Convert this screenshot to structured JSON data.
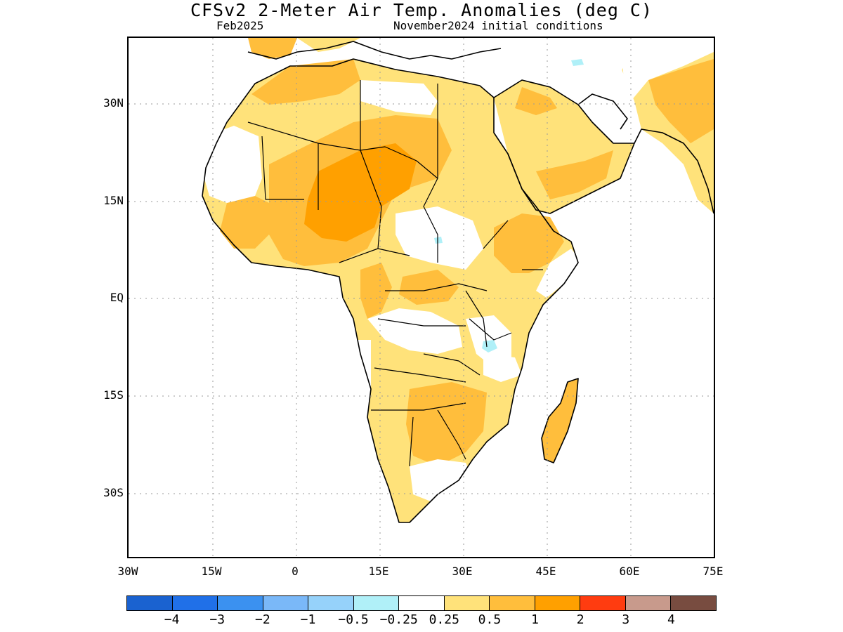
{
  "header": {
    "title": "CFSv2 2-Meter Air Temp. Anomalies (deg C)",
    "valid_month": "Feb2025",
    "initial_conditions": "November2024 initial conditions"
  },
  "map": {
    "latitude_labels": [
      "30N",
      "15N",
      "EQ",
      "15S",
      "30S"
    ],
    "longitude_labels": [
      "30W",
      "15W",
      "0",
      "15E",
      "30E",
      "45E",
      "60E",
      "75E"
    ],
    "region": "Africa and Arabian Peninsula",
    "colors": {
      "weak_warm": "#ffe27a",
      "moderate_warm": "#ffbe3c",
      "strong_warm": "#ffa000",
      "weak_cool": "#b0f0f8",
      "coastline": "#000000",
      "gridline": "#9a9a9a"
    }
  },
  "colorbar": {
    "colors": [
      "#1a62d0",
      "#2070e8",
      "#3b91f0",
      "#7ab8f8",
      "#96d2fa",
      "#b0f0f8",
      "#ffffff",
      "#ffe27a",
      "#ffbe3c",
      "#ffa000",
      "#ff3c10",
      "#c89a8c",
      "#784c40"
    ],
    "labels": [
      "−4",
      "−3",
      "−2",
      "−1",
      "−0.5",
      "−0.25",
      "0.25",
      "0.5",
      "1",
      "2",
      "3",
      "4"
    ]
  }
}
